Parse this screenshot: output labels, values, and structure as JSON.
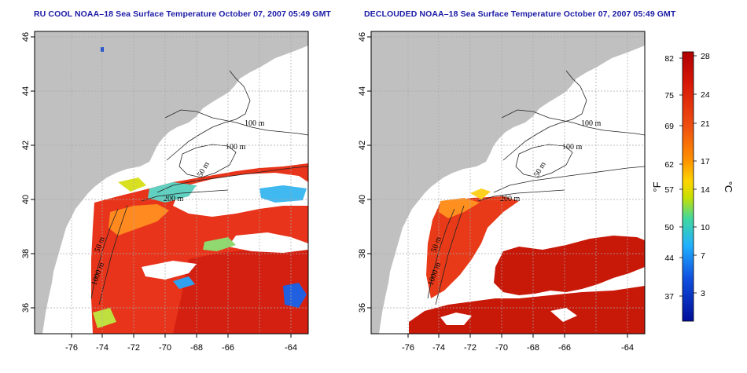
{
  "panels": [
    {
      "title": "RU COOL NOAA–18 Sea Surface Temperature October 07, 2007 05:49 GMT",
      "variant": "raw"
    },
    {
      "title": "DECLOUDED NOAA–18 Sea Surface Temperature October 07, 2007 05:49 GMT",
      "variant": "declouded"
    }
  ],
  "axes": {
    "x_ticks": [
      "-76",
      "-74",
      "-72",
      "-70",
      "-68",
      "-66",
      "-64"
    ],
    "y_ticks": [
      "36",
      "38",
      "40",
      "42",
      "44",
      "46"
    ]
  },
  "contour_labels": [
    "100 m",
    "100 m",
    "50 m",
    "200 m",
    "50 m",
    "1000 m"
  ],
  "colorbar": {
    "fahrenheit_unit": "°F",
    "celsius_unit": "°C",
    "fahrenheit_ticks": [
      "82",
      "75",
      "69",
      "62",
      "57",
      "50",
      "44",
      "37"
    ],
    "celsius_ticks": [
      "28",
      "24",
      "21",
      "17",
      "14",
      "10",
      "7",
      "3"
    ],
    "colors": [
      "#c00000",
      "#e83010",
      "#ff8000",
      "#ffd000",
      "#c8e000",
      "#40d0a0",
      "#20b0ff",
      "#1050e0",
      "#0010a0"
    ]
  },
  "colors": {
    "land": "#c0c0c0",
    "ocean_cloud": "#ffffff",
    "title": "#1a1aa6"
  }
}
